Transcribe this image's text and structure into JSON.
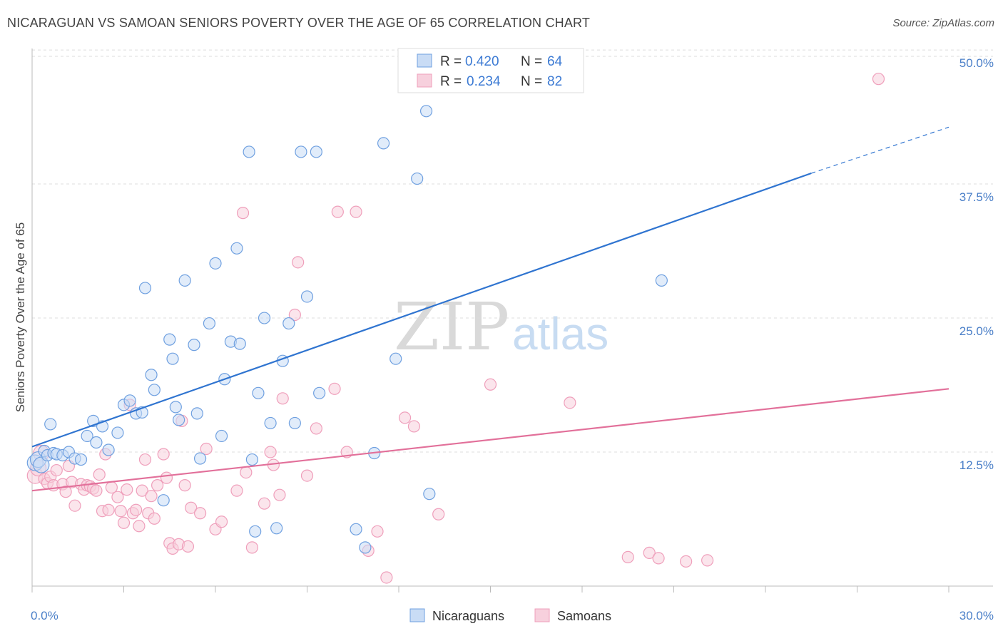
{
  "header": {
    "title": "NICARAGUAN VS SAMOAN SENIORS POVERTY OVER THE AGE OF 65 CORRELATION CHART",
    "source": "Source: ZipAtlas.com"
  },
  "watermark": {
    "zip": "ZIP",
    "atlas": "atlas"
  },
  "chart_data": {
    "type": "scatter",
    "title": "NICARAGUAN VS SAMOAN SENIORS POVERTY OVER THE AGE OF 65 CORRELATION CHART",
    "xlabel": "",
    "ylabel": "Seniors Poverty Over the Age of 65",
    "xlim": [
      0,
      30
    ],
    "ylim": [
      0,
      52
    ],
    "x_tick_labels": [
      "0.0%",
      "30.0%"
    ],
    "y_ticks": [
      12.5,
      25.0,
      37.5,
      50.0
    ],
    "y_tick_labels": [
      "12.5%",
      "25.0%",
      "37.5%",
      "50.0%"
    ],
    "grid": true,
    "legend_position": "top-center",
    "stats_legend": [
      {
        "r_label": "R = ",
        "r_value": "0.420",
        "n_label": "N = ",
        "n_value": "64"
      },
      {
        "r_label": "R = ",
        "r_value": "0.234",
        "n_label": "N = ",
        "n_value": "82"
      }
    ],
    "series": [
      {
        "name": "Nicaraguans",
        "color": "#6fa0e0",
        "fill": "#c9dcf5",
        "line_color": "#2f74d0",
        "trend": {
          "x0": 0,
          "y0": 13.0,
          "x1": 25.5,
          "y1": 38.5,
          "dash_to_x": 30,
          "dash_to_y": 42.8
        },
        "points": [
          [
            0.1,
            11.5
          ],
          [
            0.2,
            11.8
          ],
          [
            0.3,
            11.3
          ],
          [
            0.4,
            12.6
          ],
          [
            0.5,
            12.2
          ],
          [
            0.6,
            15.1
          ],
          [
            0.7,
            12.4
          ],
          [
            0.8,
            12.3
          ],
          [
            1.0,
            12.2
          ],
          [
            1.2,
            12.5
          ],
          [
            1.4,
            11.9
          ],
          [
            1.6,
            11.8
          ],
          [
            1.8,
            14.0
          ],
          [
            2.0,
            15.4
          ],
          [
            2.1,
            13.4
          ],
          [
            2.3,
            14.9
          ],
          [
            2.5,
            12.7
          ],
          [
            2.8,
            14.3
          ],
          [
            3.0,
            16.9
          ],
          [
            3.2,
            17.3
          ],
          [
            3.4,
            16.1
          ],
          [
            3.6,
            16.2
          ],
          [
            3.7,
            27.8
          ],
          [
            3.9,
            19.7
          ],
          [
            4.0,
            18.3
          ],
          [
            4.3,
            8.0
          ],
          [
            4.5,
            23.0
          ],
          [
            4.6,
            21.2
          ],
          [
            4.7,
            16.7
          ],
          [
            4.8,
            15.5
          ],
          [
            5.0,
            28.5
          ],
          [
            5.3,
            22.5
          ],
          [
            5.4,
            16.1
          ],
          [
            5.5,
            11.9
          ],
          [
            5.8,
            24.5
          ],
          [
            6.0,
            30.1
          ],
          [
            6.2,
            14.0
          ],
          [
            6.3,
            19.3
          ],
          [
            6.5,
            22.8
          ],
          [
            6.7,
            31.5
          ],
          [
            6.8,
            22.6
          ],
          [
            7.1,
            40.5
          ],
          [
            7.2,
            11.8
          ],
          [
            7.3,
            5.1
          ],
          [
            7.4,
            18.0
          ],
          [
            7.6,
            25.0
          ],
          [
            7.8,
            15.2
          ],
          [
            8.0,
            5.4
          ],
          [
            8.2,
            21.0
          ],
          [
            8.4,
            24.5
          ],
          [
            8.6,
            15.2
          ],
          [
            8.8,
            40.5
          ],
          [
            9.0,
            27.0
          ],
          [
            9.3,
            40.5
          ],
          [
            9.4,
            18.0
          ],
          [
            10.6,
            5.3
          ],
          [
            10.9,
            3.6
          ],
          [
            11.2,
            12.4
          ],
          [
            11.5,
            41.3
          ],
          [
            11.9,
            21.2
          ],
          [
            12.6,
            38.0
          ],
          [
            12.9,
            44.3
          ],
          [
            13.0,
            8.6
          ],
          [
            20.6,
            28.5
          ]
        ]
      },
      {
        "name": "Samoans",
        "color": "#ef9fbb",
        "fill": "#f7d0dd",
        "line_color": "#e2709a",
        "trend": {
          "x0": 0,
          "y0": 8.9,
          "x1": 30,
          "y1": 18.4
        },
        "points": [
          [
            0.1,
            10.3
          ],
          [
            0.2,
            11.0
          ],
          [
            0.3,
            12.4
          ],
          [
            0.4,
            10.0
          ],
          [
            0.5,
            9.6
          ],
          [
            0.6,
            10.2
          ],
          [
            0.7,
            9.4
          ],
          [
            0.8,
            10.8
          ],
          [
            1.0,
            9.5
          ],
          [
            1.1,
            8.8
          ],
          [
            1.2,
            11.2
          ],
          [
            1.3,
            9.7
          ],
          [
            1.4,
            7.5
          ],
          [
            1.6,
            9.5
          ],
          [
            1.7,
            9.0
          ],
          [
            1.8,
            9.4
          ],
          [
            1.9,
            9.3
          ],
          [
            2.0,
            9.1
          ],
          [
            2.1,
            8.9
          ],
          [
            2.2,
            10.4
          ],
          [
            2.3,
            7.0
          ],
          [
            2.4,
            12.3
          ],
          [
            2.5,
            7.1
          ],
          [
            2.6,
            9.2
          ],
          [
            2.8,
            8.3
          ],
          [
            2.9,
            7.0
          ],
          [
            3.0,
            5.9
          ],
          [
            3.1,
            9.0
          ],
          [
            3.2,
            16.9
          ],
          [
            3.3,
            6.8
          ],
          [
            3.4,
            7.1
          ],
          [
            3.5,
            5.6
          ],
          [
            3.6,
            8.9
          ],
          [
            3.7,
            11.8
          ],
          [
            3.8,
            6.8
          ],
          [
            3.9,
            8.4
          ],
          [
            4.0,
            6.3
          ],
          [
            4.1,
            9.4
          ],
          [
            4.3,
            12.3
          ],
          [
            4.4,
            10.1
          ],
          [
            4.5,
            4.0
          ],
          [
            4.6,
            3.5
          ],
          [
            4.8,
            3.9
          ],
          [
            4.9,
            15.4
          ],
          [
            5.0,
            9.4
          ],
          [
            5.1,
            3.7
          ],
          [
            5.2,
            7.3
          ],
          [
            5.5,
            6.8
          ],
          [
            5.7,
            12.8
          ],
          [
            6.0,
            5.3
          ],
          [
            6.2,
            6.0
          ],
          [
            6.7,
            8.9
          ],
          [
            6.9,
            34.8
          ],
          [
            7.0,
            10.6
          ],
          [
            7.2,
            3.6
          ],
          [
            7.6,
            7.7
          ],
          [
            7.8,
            12.5
          ],
          [
            7.9,
            11.3
          ],
          [
            8.1,
            8.5
          ],
          [
            8.2,
            17.5
          ],
          [
            8.6,
            25.3
          ],
          [
            8.7,
            30.2
          ],
          [
            9.0,
            10.3
          ],
          [
            9.3,
            14.7
          ],
          [
            9.9,
            18.4
          ],
          [
            10.0,
            34.9
          ],
          [
            10.3,
            12.5
          ],
          [
            10.6,
            34.9
          ],
          [
            11.0,
            3.3
          ],
          [
            11.3,
            5.1
          ],
          [
            11.6,
            0.8
          ],
          [
            12.2,
            15.7
          ],
          [
            12.5,
            14.9
          ],
          [
            13.3,
            6.7
          ],
          [
            15.0,
            18.8
          ],
          [
            17.6,
            17.1
          ],
          [
            19.5,
            2.7
          ],
          [
            20.2,
            3.1
          ],
          [
            20.5,
            2.6
          ],
          [
            21.4,
            2.3
          ],
          [
            22.1,
            2.4
          ],
          [
            27.7,
            47.3
          ]
        ]
      }
    ]
  }
}
